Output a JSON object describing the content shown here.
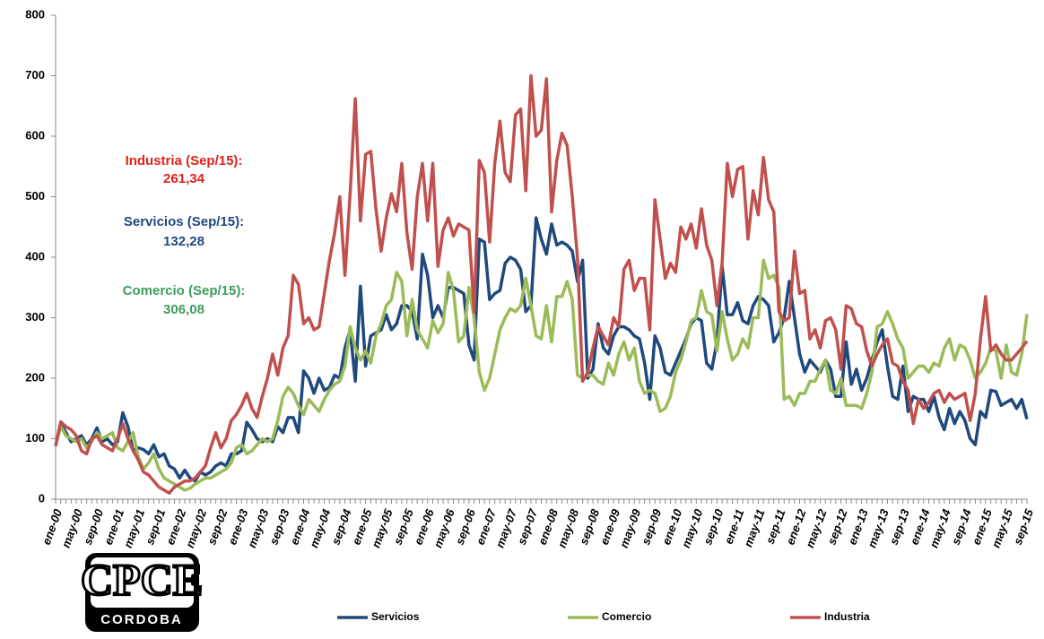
{
  "chart_data": {
    "type": "line",
    "categories": [
      "ene-00",
      null,
      null,
      null,
      "may-00",
      null,
      null,
      null,
      "sep-00",
      null,
      null,
      null,
      "ene-01",
      null,
      null,
      null,
      "may-01",
      null,
      null,
      null,
      "sep-01",
      null,
      null,
      null,
      "ene-02",
      null,
      null,
      null,
      "may-02",
      null,
      null,
      null,
      "sep-02",
      null,
      null,
      null,
      "ene-03",
      null,
      null,
      null,
      "may-03",
      null,
      null,
      null,
      "sep-03",
      null,
      null,
      null,
      "ene-04",
      null,
      null,
      null,
      "may-04",
      null,
      null,
      null,
      "sep-04",
      null,
      null,
      null,
      "ene-05",
      null,
      null,
      null,
      "may-05",
      null,
      null,
      null,
      "sep-05",
      null,
      null,
      null,
      "ene-06",
      null,
      null,
      null,
      "may-06",
      null,
      null,
      null,
      "sep-06",
      null,
      null,
      null,
      "ene-07",
      null,
      null,
      null,
      "may-07",
      null,
      null,
      null,
      "sep-07",
      null,
      null,
      null,
      "ene-08",
      null,
      null,
      null,
      "may-08",
      null,
      null,
      null,
      "sep-08",
      null,
      null,
      null,
      "ene-09",
      null,
      null,
      null,
      "may-09",
      null,
      null,
      null,
      "sep-09",
      null,
      null,
      null,
      "ene-10",
      null,
      null,
      null,
      "may-10",
      null,
      null,
      null,
      "sep-10",
      null,
      null,
      null,
      "ene-11",
      null,
      null,
      null,
      "may-11",
      null,
      null,
      null,
      "sep-11",
      null,
      null,
      null,
      "ene-12",
      null,
      null,
      null,
      "may-12",
      null,
      null,
      null,
      "sep-12",
      null,
      null,
      null,
      "ene-13",
      null,
      null,
      null,
      "may-13",
      null,
      null,
      null,
      "sep-13",
      null,
      null,
      null,
      "ene-14",
      null,
      null,
      null,
      "may-14",
      null,
      null,
      null,
      "sep-14",
      null,
      null,
      null,
      "ene-15",
      null,
      null,
      null,
      "may-15",
      null,
      null,
      null,
      "sep-15"
    ],
    "series": [
      {
        "name": "Servicios",
        "color": "#1f497d",
        "values": [
          88,
          125,
          110,
          95,
          100,
          105,
          90,
          100,
          118,
          95,
          100,
          90,
          95,
          143,
          120,
          80,
          85,
          82,
          75,
          90,
          70,
          75,
          55,
          50,
          35,
          48,
          35,
          30,
          45,
          40,
          45,
          55,
          60,
          55,
          75,
          75,
          80,
          127,
          115,
          100,
          95,
          100,
          95,
          120,
          110,
          135,
          135,
          110,
          212,
          200,
          175,
          200,
          180,
          185,
          205,
          200,
          250,
          280,
          195,
          352,
          220,
          270,
          275,
          280,
          305,
          280,
          290,
          320,
          320,
          310,
          265,
          405,
          370,
          300,
          320,
          300,
          350,
          350,
          345,
          340,
          255,
          230,
          430,
          425,
          330,
          340,
          345,
          390,
          400,
          395,
          380,
          310,
          320,
          465,
          430,
          405,
          455,
          420,
          425,
          420,
          410,
          360,
          395,
          200,
          215,
          290,
          250,
          240,
          270,
          285,
          285,
          280,
          270,
          265,
          225,
          165,
          270,
          250,
          210,
          205,
          225,
          245,
          265,
          290,
          300,
          295,
          225,
          215,
          260,
          385,
          305,
          305,
          325,
          295,
          290,
          320,
          335,
          330,
          320,
          260,
          275,
          300,
          360,
          300,
          240,
          210,
          230,
          220,
          210,
          230,
          215,
          170,
          170,
          260,
          190,
          215,
          180,
          200,
          230,
          260,
          280,
          220,
          170,
          165,
          220,
          145,
          170,
          165,
          165,
          145,
          170,
          135,
          115,
          150,
          125,
          145,
          130,
          100,
          90,
          145,
          135,
          180,
          178,
          155,
          160,
          165,
          150,
          165,
          132.28
        ]
      },
      {
        "name": "Comercio",
        "color": "#9bbb59",
        "values": [
          90,
          120,
          105,
          100,
          95,
          100,
          85,
          95,
          110,
          100,
          105,
          110,
          85,
          80,
          95,
          110,
          70,
          50,
          60,
          75,
          50,
          35,
          30,
          25,
          20,
          15,
          18,
          25,
          30,
          35,
          35,
          40,
          45,
          50,
          60,
          85,
          90,
          75,
          80,
          90,
          100,
          95,
          100,
          130,
          170,
          185,
          175,
          155,
          140,
          165,
          155,
          145,
          165,
          180,
          190,
          195,
          220,
          285,
          250,
          230,
          245,
          225,
          270,
          290,
          320,
          330,
          375,
          360,
          270,
          330,
          280,
          265,
          250,
          295,
          275,
          290,
          375,
          345,
          260,
          270,
          350,
          300,
          210,
          180,
          200,
          240,
          280,
          300,
          315,
          310,
          320,
          365,
          320,
          270,
          265,
          320,
          260,
          335,
          335,
          360,
          330,
          205,
          200,
          205,
          205,
          195,
          190,
          225,
          205,
          240,
          260,
          230,
          250,
          195,
          175,
          180,
          175,
          145,
          150,
          170,
          210,
          230,
          260,
          295,
          300,
          345,
          310,
          305,
          245,
          310,
          265,
          230,
          240,
          265,
          250,
          300,
          300,
          395,
          365,
          370,
          350,
          165,
          170,
          155,
          175,
          175,
          195,
          195,
          215,
          230,
          180,
          175,
          200,
          155,
          155,
          155,
          150,
          175,
          210,
          285,
          290,
          310,
          290,
          265,
          250,
          200,
          210,
          220,
          220,
          210,
          225,
          220,
          250,
          265,
          230,
          255,
          250,
          230,
          200,
          210,
          225,
          250,
          245,
          200,
          255,
          210,
          205,
          240,
          306.08
        ]
      },
      {
        "name": "Industria",
        "color": "#c0504d",
        "values": [
          88,
          128,
          120,
          115,
          105,
          80,
          75,
          100,
          105,
          90,
          85,
          80,
          100,
          125,
          100,
          80,
          65,
          45,
          40,
          30,
          20,
          15,
          10,
          20,
          25,
          30,
          30,
          35,
          45,
          55,
          85,
          110,
          85,
          100,
          130,
          140,
          155,
          175,
          150,
          135,
          170,
          200,
          240,
          205,
          250,
          270,
          370,
          355,
          290,
          300,
          280,
          285,
          340,
          395,
          440,
          500,
          370,
          505,
          662,
          460,
          570,
          575,
          480,
          410,
          465,
          505,
          475,
          555,
          440,
          380,
          500,
          555,
          460,
          555,
          385,
          445,
          465,
          435,
          455,
          450,
          445,
          310,
          560,
          540,
          425,
          555,
          625,
          540,
          525,
          635,
          645,
          510,
          700,
          600,
          610,
          695,
          475,
          560,
          605,
          585,
          500,
          400,
          195,
          210,
          250,
          285,
          270,
          255,
          300,
          285,
          380,
          395,
          345,
          365,
          365,
          280,
          495,
          430,
          365,
          390,
          375,
          450,
          430,
          455,
          415,
          480,
          420,
          395,
          320,
          390,
          555,
          500,
          545,
          550,
          430,
          510,
          470,
          565,
          495,
          475,
          310,
          295,
          300,
          410,
          340,
          345,
          265,
          280,
          250,
          295,
          300,
          280,
          215,
          320,
          315,
          290,
          285,
          245,
          220,
          240,
          255,
          265,
          225,
          220,
          195,
          180,
          125,
          165,
          150,
          160,
          175,
          180,
          160,
          175,
          165,
          170,
          175,
          130,
          175,
          265,
          335,
          245,
          255,
          240,
          230,
          230,
          240,
          250,
          261.34
        ]
      }
    ],
    "ylim": [
      0,
      800
    ],
    "yticks": [
      0,
      100,
      200,
      300,
      400,
      500,
      600,
      700,
      800
    ],
    "grid": false,
    "legend": "bottom",
    "annotations": [
      {
        "text": "Industria (Sep/15):",
        "value": "261,34",
        "color": "#e0211d"
      },
      {
        "text": "Servicios (Sep/15):",
        "value": "132,28",
        "color": "#1f497d"
      },
      {
        "text": "Comercio (Sep/15):",
        "value": "306,08",
        "color": "#3f9c5c"
      }
    ]
  },
  "logo": {
    "title": "CPCE",
    "subtitle": "CORDOBA"
  }
}
